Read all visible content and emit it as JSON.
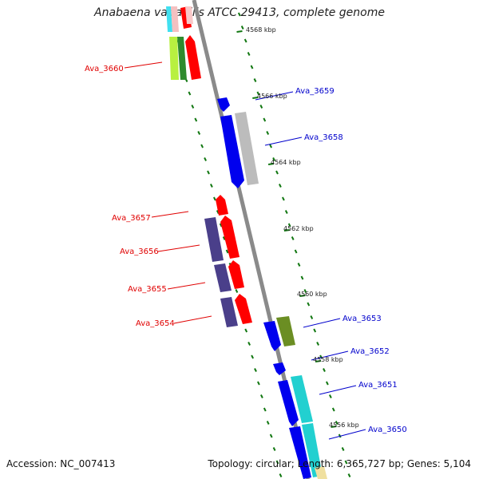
{
  "title": "Anabaena variabilis ATCC 29413, complete genome",
  "footer": {
    "accession": "Accession: NC_007413",
    "summary": "Topology: circular; Length: 6,365,727 bp; Genes: 5,104"
  },
  "kbp_labels": [
    "4568 kbp",
    "4566 kbp",
    "4564 kbp",
    "4562 kbp",
    "4560 kbp",
    "4558 kbp",
    "4556 kbp"
  ],
  "genes_left": [
    "Ava_3660",
    "Ava_3657",
    "Ava_3656",
    "Ava_3655",
    "Ava_3654"
  ],
  "genes_right": [
    "Ava_3659",
    "Ava_3658",
    "Ava_3653",
    "Ava_3652",
    "Ava_3651",
    "Ava_3650"
  ],
  "colors": {
    "left_label": "#e00000",
    "right_label": "#0000cc",
    "axis": "#888888",
    "tick": "#117711",
    "red_gene": "#ff0000",
    "blue_gene": "#0000ee",
    "purple_gene": "#4a3f8a",
    "grey_gene": "#bcbcbc",
    "olive_gene": "#6b8e23",
    "cyan_gene": "#22d0d0",
    "lime_gene": "#b8f040",
    "green_gene": "#2e8b2e"
  }
}
